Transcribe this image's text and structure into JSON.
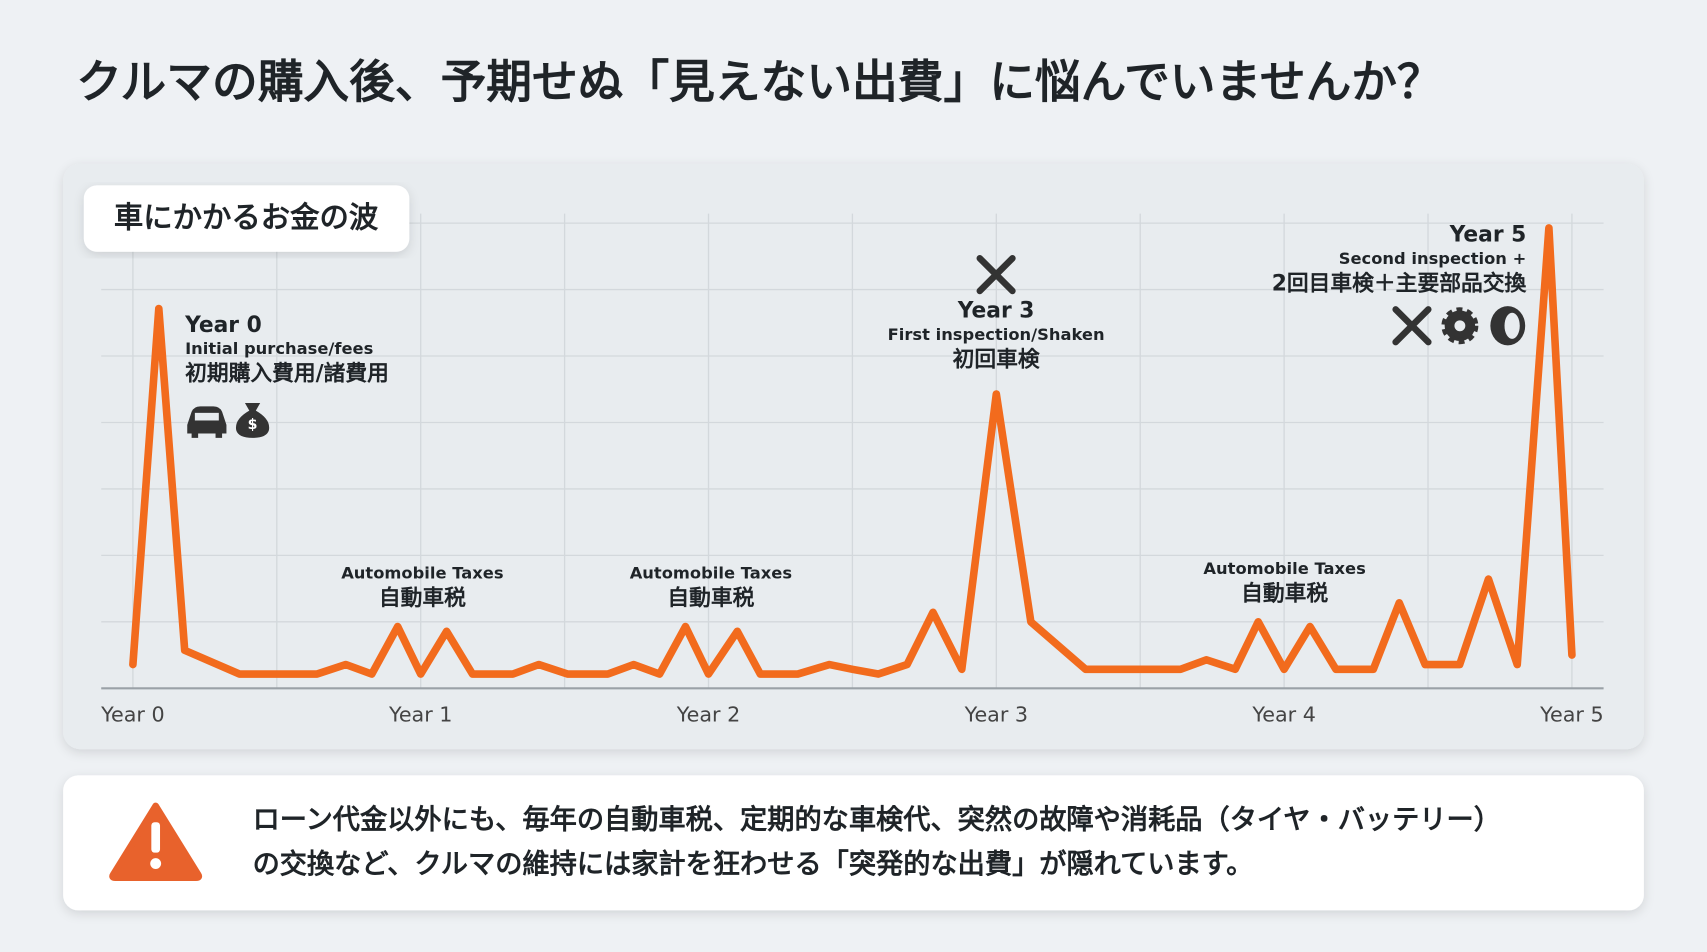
{
  "title": "クルマの購入後、予期せぬ「見えない出費」に悩んでいませんか？",
  "chart_data": {
    "type": "line",
    "title": "車にかかるお金の波",
    "x": [
      0,
      0.09,
      0.18,
      0.37,
      0.64,
      0.74,
      0.83,
      0.92,
      1.0,
      1.09,
      1.18,
      1.32,
      1.41,
      1.51,
      1.65,
      1.74,
      1.83,
      1.92,
      2.0,
      2.1,
      2.18,
      2.31,
      2.42,
      2.5,
      2.59,
      2.69,
      2.78,
      2.88,
      3.0,
      3.12,
      3.31,
      3.64,
      3.73,
      3.83,
      3.91,
      4.0,
      4.09,
      4.18,
      4.31,
      4.4,
      4.49,
      4.61,
      4.71,
      4.81,
      4.92,
      5.0
    ],
    "values": [
      5,
      80,
      8,
      3,
      3,
      5,
      3,
      13,
      3,
      12,
      3,
      3,
      5,
      3,
      3,
      5,
      3,
      13,
      3,
      12,
      3,
      3,
      5,
      4,
      3,
      5,
      16,
      4,
      62,
      14,
      4,
      4,
      6,
      4,
      14,
      4,
      13,
      4,
      4,
      18,
      5,
      5,
      23,
      5,
      97,
      7
    ],
    "color": "#f26b1d",
    "xlim": [
      -0.11,
      5.11
    ],
    "xticks": [
      {
        "value": 0,
        "label": "Year 0"
      },
      {
        "value": 1,
        "label": "Year 1"
      },
      {
        "value": 2,
        "label": "Year 2"
      },
      {
        "value": 3,
        "label": "Year 3"
      },
      {
        "value": 4,
        "label": "Year 4"
      },
      {
        "value": 5,
        "label": "Year 5"
      }
    ],
    "ylim": [
      0,
      100
    ],
    "yticks": [
      0,
      14,
      28,
      42,
      56,
      70,
      84,
      98
    ],
    "grid": true,
    "annotations": [
      [
        "Year 0",
        "Initial purchase/fees",
        "初期購入費用/諸費用"
      ],
      [
        "Automobile Taxes",
        "自動車税"
      ],
      [
        "Automobile Taxes",
        "自動車税"
      ],
      [
        "Year 3",
        "First inspection/Shaken",
        "初回車検"
      ],
      [
        "Automobile Taxes",
        "自動車税"
      ],
      [
        "Year 5",
        "Second inspection +",
        "2回目車検＋主要部品交換"
      ]
    ]
  },
  "notice": [
    "ローン代金以外にも、毎年の自動車税、定期的な車検代、突然の故障や消耗品（タイヤ・バッテリー）",
    "の交換など、クルマの維持には家計を狂わせる「突発的な出費」が隠れています。"
  ]
}
